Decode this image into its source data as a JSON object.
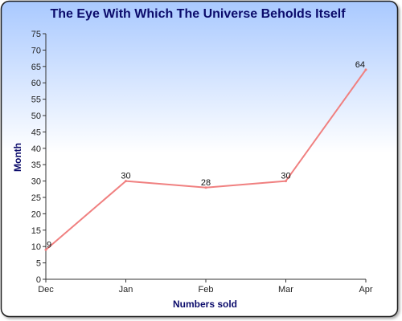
{
  "chart_data": {
    "type": "line",
    "title": "The Eye With Which The Universe Beholds Itself",
    "xlabel": "Numbers sold",
    "ylabel": "Month",
    "categories": [
      "Dec",
      "Jan",
      "Feb",
      "Mar",
      "Apr"
    ],
    "series": [
      {
        "values": [
          9,
          30,
          28,
          30,
          64
        ],
        "color": "#f08080"
      }
    ],
    "ylim": [
      0,
      75
    ],
    "yticks": [
      0,
      5,
      10,
      15,
      20,
      25,
      30,
      35,
      40,
      45,
      50,
      55,
      60,
      65,
      70,
      75
    ],
    "ytick_labels": [
      "0",
      "5",
      "10",
      "15",
      "20",
      "25",
      "30",
      "35",
      "40",
      "45",
      "50",
      "55",
      "60",
      "65",
      "70",
      "75"
    ],
    "data_labels": [
      "9",
      "30",
      "28",
      "30",
      "64"
    ],
    "grid": false,
    "colors": {
      "title": "#0b0b6b",
      "axis_label": "#0b0b6b",
      "background_top": "#a9c9ff",
      "background_bottom": "#ffffff",
      "border": "#1f1f1f"
    }
  }
}
